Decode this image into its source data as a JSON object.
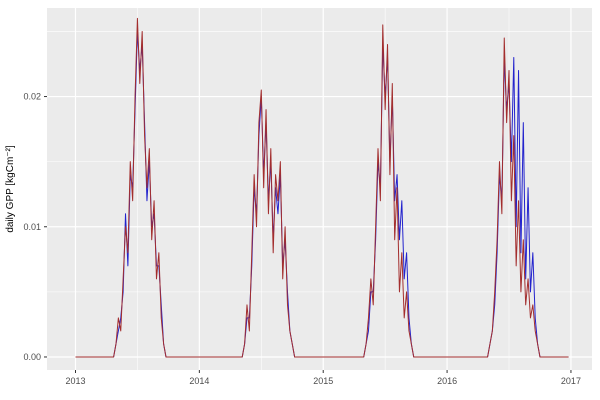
{
  "chart_data": {
    "type": "line",
    "title": "",
    "xlabel": "",
    "ylabel": "daily GPP [kgCm⁻²]",
    "x_ticks": [
      2013,
      2014,
      2015,
      2016,
      2017
    ],
    "x_tick_labels": [
      "2013",
      "2014",
      "2015",
      "2016",
      "2017"
    ],
    "x_minor_ticks": [
      2013.5,
      2014.5,
      2015.5,
      2016.5
    ],
    "y_ticks": [
      0.0,
      0.01,
      0.02
    ],
    "y_tick_labels": [
      "0.00",
      "0.01",
      "0.02"
    ],
    "y_minor_ticks": [
      0.005,
      0.015,
      0.025
    ],
    "xlim": [
      2012.77,
      2017.17
    ],
    "ylim": [
      -0.001,
      0.0268
    ],
    "grid": true,
    "legend_position": "none",
    "panel_bg": "#ebebeb",
    "grid_color": "#ffffff",
    "tick_color": "#333333",
    "tick_text_color": "#4d4d4d",
    "sampling": {
      "x_start": 2013.0,
      "x_step_years": 0.01923077,
      "resolution": "weekly"
    },
    "series": [
      {
        "name": "series-blue",
        "color": "#2323cd",
        "values": [
          0,
          0,
          0,
          0,
          0,
          0,
          0,
          0,
          0,
          0,
          0,
          0,
          0,
          0,
          0,
          0,
          0,
          0.001,
          0.002,
          0.003,
          0.005,
          0.011,
          0.007,
          0.014,
          0.013,
          0.019,
          0.025,
          0.022,
          0.024,
          0.018,
          0.012,
          0.015,
          0.01,
          0.011,
          0.007,
          0.007,
          0.004,
          0.001,
          0,
          0,
          0,
          0,
          0,
          0,
          0,
          0,
          0,
          0,
          0,
          0,
          0,
          0,
          0,
          0,
          0,
          0,
          0,
          0,
          0,
          0,
          0,
          0,
          0,
          0,
          0,
          0,
          0,
          0,
          0,
          0,
          0,
          0.001,
          0.003,
          0.003,
          0.007,
          0.013,
          0.011,
          0.017,
          0.02,
          0.014,
          0.018,
          0.012,
          0.015,
          0.009,
          0.013,
          0.011,
          0.014,
          0.007,
          0.009,
          0.005,
          0.002,
          0.001,
          0,
          0,
          0,
          0,
          0,
          0,
          0,
          0,
          0,
          0,
          0,
          0,
          0,
          0,
          0,
          0,
          0,
          0,
          0,
          0,
          0,
          0,
          0,
          0,
          0,
          0,
          0,
          0,
          0,
          0,
          0.001,
          0.002,
          0.005,
          0.005,
          0.009,
          0.015,
          0.013,
          0.024,
          0.02,
          0.023,
          0.015,
          0.02,
          0.012,
          0.014,
          0.009,
          0.012,
          0.006,
          0.008,
          0.003,
          0.001,
          0,
          0,
          0,
          0,
          0,
          0,
          0,
          0,
          0,
          0,
          0,
          0,
          0,
          0,
          0,
          0,
          0,
          0,
          0,
          0,
          0,
          0,
          0,
          0,
          0,
          0,
          0,
          0,
          0,
          0,
          0,
          0,
          0.001,
          0.002,
          0.004,
          0.008,
          0.014,
          0.012,
          0.023,
          0.019,
          0.021,
          0.015,
          0.023,
          0.01,
          0.022,
          0.008,
          0.018,
          0.006,
          0.013,
          0.005,
          0.008,
          0.003,
          0.001,
          0,
          0,
          0,
          0,
          0,
          0,
          0,
          0,
          0,
          0,
          0,
          0,
          0
        ]
      },
      {
        "name": "series-red",
        "color": "#a32e2e",
        "values": [
          0,
          0,
          0,
          0,
          0,
          0,
          0,
          0,
          0,
          0,
          0,
          0,
          0,
          0,
          0,
          0,
          0,
          0.001,
          0.003,
          0.002,
          0.006,
          0.01,
          0.008,
          0.015,
          0.012,
          0.02,
          0.026,
          0.021,
          0.025,
          0.017,
          0.013,
          0.016,
          0.009,
          0.012,
          0.006,
          0.008,
          0.003,
          0.001,
          0,
          0,
          0,
          0,
          0,
          0,
          0,
          0,
          0,
          0,
          0,
          0,
          0,
          0,
          0,
          0,
          0,
          0,
          0,
          0,
          0,
          0,
          0,
          0,
          0,
          0,
          0,
          0,
          0,
          0,
          0,
          0,
          0,
          0.001,
          0.004,
          0.002,
          0.008,
          0.014,
          0.01,
          0.018,
          0.0205,
          0.013,
          0.019,
          0.011,
          0.016,
          0.008,
          0.014,
          0.012,
          0.015,
          0.006,
          0.01,
          0.004,
          0.002,
          0.001,
          0,
          0,
          0,
          0,
          0,
          0,
          0,
          0,
          0,
          0,
          0,
          0,
          0,
          0,
          0,
          0,
          0,
          0,
          0,
          0,
          0,
          0,
          0,
          0,
          0,
          0,
          0,
          0,
          0,
          0,
          0.001,
          0.003,
          0.006,
          0.004,
          0.01,
          0.016,
          0.012,
          0.0255,
          0.019,
          0.024,
          0.014,
          0.021,
          0.009,
          0.013,
          0.005,
          0.008,
          0.003,
          0.005,
          0.002,
          0.001,
          0,
          0,
          0,
          0,
          0,
          0,
          0,
          0,
          0,
          0,
          0,
          0,
          0,
          0,
          0,
          0,
          0,
          0,
          0,
          0,
          0,
          0,
          0,
          0,
          0,
          0,
          0,
          0,
          0,
          0,
          0,
          0,
          0.001,
          0.002,
          0.005,
          0.009,
          0.015,
          0.011,
          0.0245,
          0.018,
          0.022,
          0.012,
          0.017,
          0.007,
          0.012,
          0.005,
          0.009,
          0.004,
          0.006,
          0.003,
          0.004,
          0.002,
          0.001,
          0,
          0,
          0,
          0,
          0,
          0,
          0,
          0,
          0,
          0,
          0,
          0,
          0
        ]
      }
    ]
  }
}
